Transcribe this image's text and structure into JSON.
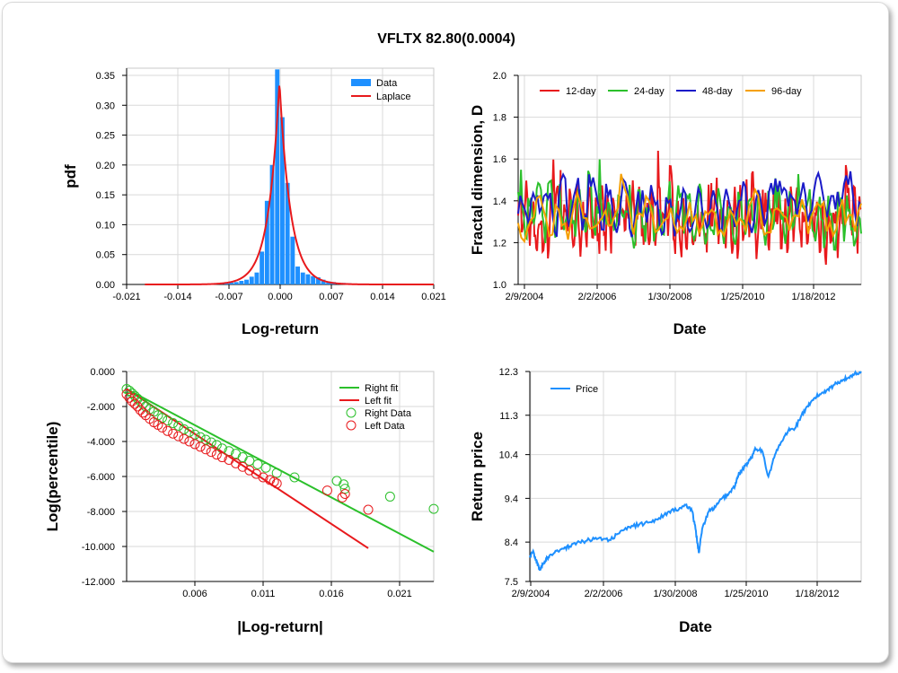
{
  "title": "VFLTX 82.80(0.0004)",
  "chart_data": [
    {
      "type": "bar",
      "id": "pdf",
      "xlabel": "Log-return",
      "ylabel": "pdf",
      "xlim": [
        -0.021,
        0.021
      ],
      "ylim": [
        0,
        0.35
      ],
      "xticks": [
        "-0.021",
        "-0.014",
        "-0.007",
        "0.000",
        "0.007",
        "0.014",
        "0.021"
      ],
      "yticks": [
        "0.00",
        "0.05",
        "0.10",
        "0.15",
        "0.20",
        "0.25",
        "0.30",
        "0.35"
      ],
      "legend": [
        "Data",
        "Laplace"
      ],
      "bar_width": 0.0007,
      "bars": {
        "x": [
          -0.0158,
          -0.0151,
          -0.0144,
          -0.0137,
          -0.013,
          -0.0123,
          -0.0116,
          -0.0109,
          -0.0102,
          -0.0095,
          -0.0088,
          -0.0081,
          -0.0074,
          -0.0067,
          -0.006,
          -0.0053,
          -0.0046,
          -0.0039,
          -0.0032,
          -0.0025,
          -0.0018,
          -0.0011,
          -0.0004,
          0.0003,
          0.001,
          0.0017,
          0.0024,
          0.0031,
          0.0038,
          0.0045,
          0.0052,
          0.0059,
          0.0066,
          0.0073,
          0.008,
          0.0087,
          0.0094,
          0.0101,
          0.0108,
          0.0115,
          0.0122,
          0.0129,
          0.0136,
          0.0143,
          0.015,
          0.0157,
          0.0164,
          0.0171,
          0.0178,
          0.0185,
          0.0192,
          0.0199,
          0.0206
        ],
        "values": [
          0.0005,
          0.0005,
          0.0005,
          0.0008,
          0.0008,
          0.0008,
          0.001,
          0.001,
          0.0012,
          0.0015,
          0.0018,
          0.002,
          0.0025,
          0.003,
          0.004,
          0.006,
          0.008,
          0.013,
          0.02,
          0.055,
          0.14,
          0.2,
          0.36,
          0.28,
          0.17,
          0.08,
          0.03,
          0.02,
          0.017,
          0.014,
          0.012,
          0.008,
          0.005,
          0.004,
          0.003,
          0.0025,
          0.002,
          0.0015,
          0.0012,
          0.001,
          0.0008,
          0.0006,
          0.0005,
          0.0005,
          0.0004,
          0.0004,
          0.0003,
          0.0003,
          0.0003,
          0.0003,
          0.0002,
          0.0002,
          0.0002
        ]
      },
      "laplace": {
        "mu": -0.0001,
        "b": 0.0015,
        "peak": 0.34
      },
      "colors": {
        "bars": "#1e90ff",
        "fit": "#e8191c"
      }
    },
    {
      "type": "line",
      "id": "fractal",
      "xlabel": "Date",
      "ylabel": "Fractal dimension, D",
      "xlim": [
        0,
        100
      ],
      "ylim": [
        1.0,
        2.0
      ],
      "xticks": [
        "2/9/2004",
        "2/2/2006",
        "1/30/2008",
        "1/25/2010",
        "1/18/2012"
      ],
      "yticks": [
        "1.0",
        "1.2",
        "1.4",
        "1.6",
        "1.8",
        "2.0"
      ],
      "series": [
        {
          "name": "12-day",
          "color": "#e8191c"
        },
        {
          "name": "24-day",
          "color": "#2bc02b"
        },
        {
          "name": "48-day",
          "color": "#1b1bc8"
        },
        {
          "name": "96-day",
          "color": "#f5a000"
        }
      ]
    },
    {
      "type": "scatter",
      "id": "tail",
      "xlabel": "|Log-return|",
      "ylabel": "Log(percentile)",
      "xlim": [
        0.001,
        0.0235
      ],
      "ylim": [
        -12,
        0
      ],
      "xticks": [
        "0.006",
        "0.011",
        "0.016",
        "0.021"
      ],
      "yticks": [
        "0.000",
        "-2.000",
        "-4.000",
        "-6.000",
        "-8.000",
        "-10.000",
        "-12.000"
      ],
      "legend": [
        "Right fit",
        "Left fit",
        "Right Data",
        "Left Data"
      ],
      "right_fit": {
        "x": [
          0.001,
          0.0235
        ],
        "y": [
          -1.0,
          -10.3
        ]
      },
      "left_fit": {
        "x": [
          0.001,
          0.0187
        ],
        "y": [
          -1.0,
          -10.1
        ]
      },
      "right_data": {
        "x": [
          0.001,
          0.0012,
          0.0014,
          0.0016,
          0.0018,
          0.002,
          0.0022,
          0.0024,
          0.0027,
          0.003,
          0.0033,
          0.0036,
          0.004,
          0.0044,
          0.0048,
          0.0052,
          0.0056,
          0.006,
          0.0064,
          0.0068,
          0.0072,
          0.0076,
          0.008,
          0.0085,
          0.009,
          0.0095,
          0.01,
          0.0106,
          0.0112,
          0.012,
          0.0133,
          0.0164,
          0.0169,
          0.017,
          0.0203,
          0.0235
        ],
        "y": [
          -1.0,
          -1.1,
          -1.25,
          -1.4,
          -1.55,
          -1.7,
          -1.85,
          -2.0,
          -2.15,
          -2.3,
          -2.5,
          -2.65,
          -2.8,
          -2.95,
          -3.1,
          -3.3,
          -3.45,
          -3.6,
          -3.75,
          -3.9,
          -4.05,
          -4.2,
          -4.4,
          -4.55,
          -4.7,
          -4.9,
          -5.1,
          -5.3,
          -5.5,
          -5.8,
          -6.05,
          -6.25,
          -6.45,
          -6.7,
          -7.15,
          -7.85
        ]
      },
      "left_data": {
        "x": [
          0.001,
          0.0012,
          0.0014,
          0.0016,
          0.0018,
          0.002,
          0.0022,
          0.0024,
          0.0027,
          0.003,
          0.0033,
          0.0036,
          0.004,
          0.0044,
          0.0048,
          0.0052,
          0.0056,
          0.006,
          0.0064,
          0.0068,
          0.0072,
          0.0076,
          0.008,
          0.0085,
          0.009,
          0.0095,
          0.01,
          0.0105,
          0.011,
          0.0115,
          0.0118,
          0.012,
          0.0157,
          0.0168,
          0.017,
          0.0187
        ],
        "y": [
          -1.3,
          -1.5,
          -1.7,
          -1.85,
          -2.0,
          -2.2,
          -2.35,
          -2.5,
          -2.7,
          -2.9,
          -3.05,
          -3.2,
          -3.4,
          -3.55,
          -3.7,
          -3.85,
          -4.0,
          -4.15,
          -4.3,
          -4.45,
          -4.6,
          -4.75,
          -4.9,
          -5.05,
          -5.25,
          -5.45,
          -5.65,
          -5.85,
          -6.05,
          -6.2,
          -6.3,
          -6.4,
          -6.8,
          -7.2,
          -7.0,
          -7.9
        ]
      },
      "colors": {
        "right": "#2bc02b",
        "left": "#e8191c"
      }
    },
    {
      "type": "line",
      "id": "price",
      "xlabel": "Date",
      "ylabel": "Return price",
      "xlim": [
        0,
        100
      ],
      "ylim": [
        7.5,
        12.3
      ],
      "xticks": [
        "2/9/2004",
        "2/2/2006",
        "1/30/2008",
        "1/25/2010",
        "1/18/2012"
      ],
      "yticks": [
        "7.5",
        "8.4",
        "9.4",
        "10.4",
        "11.3",
        "12.3"
      ],
      "series": [
        {
          "name": "Price",
          "color": "#1e90ff",
          "x": [
            0,
            1,
            2,
            3,
            4,
            5,
            6,
            8,
            10,
            12,
            15,
            18,
            21,
            24,
            27,
            30,
            33,
            36,
            39,
            42,
            45,
            47,
            49,
            50,
            51,
            52,
            54,
            56,
            58,
            60,
            62,
            63,
            64,
            65,
            66,
            67,
            68,
            70,
            72,
            74,
            76,
            78,
            80,
            82,
            84,
            86,
            88,
            90,
            92,
            94,
            96,
            98,
            100
          ],
          "y": [
            8.05,
            8.2,
            7.95,
            7.75,
            7.9,
            8.0,
            8.1,
            8.2,
            8.25,
            8.3,
            8.4,
            8.45,
            8.5,
            8.45,
            8.6,
            8.75,
            8.8,
            8.85,
            8.95,
            9.1,
            9.15,
            9.25,
            9.1,
            8.7,
            8.15,
            8.7,
            9.1,
            9.2,
            9.4,
            9.5,
            9.7,
            9.95,
            10.05,
            10.15,
            10.25,
            10.35,
            10.55,
            10.5,
            9.9,
            10.4,
            10.7,
            10.95,
            11.0,
            11.3,
            11.5,
            11.7,
            11.8,
            11.9,
            12.0,
            12.1,
            12.15,
            12.25,
            12.3
          ]
        }
      ]
    }
  ]
}
